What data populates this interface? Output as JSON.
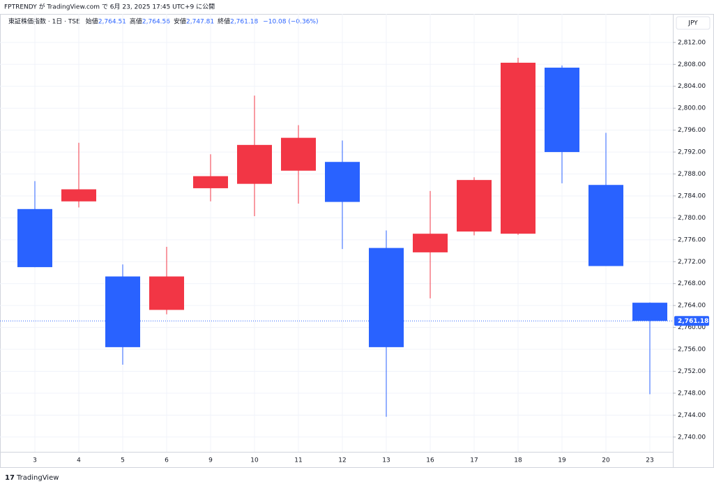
{
  "header": "FPTRENDY が TradingView.com で 6月 23, 2025 17:45 UTC+9 に公開",
  "footer": "TradingView",
  "chart_data": {
    "type": "candlestick",
    "symbol": "東証株価指数 · 1日 · TSE",
    "ohlc_labels": [
      {
        "label": "始値",
        "value": "2,764.51"
      },
      {
        "label": "高値",
        "value": "2,764.56"
      },
      {
        "label": "安値",
        "value": "2,747.81"
      },
      {
        "label": "終値",
        "value": "2,761.18"
      }
    ],
    "change": "−10.08 (−0.36%)",
    "currency": "JPY",
    "categories": [
      "3",
      "4",
      "5",
      "6",
      "9",
      "10",
      "11",
      "12",
      "13",
      "16",
      "17",
      "18",
      "19",
      "20",
      "23"
    ],
    "open": [
      2781.6,
      2783.0,
      2769.3,
      2763.2,
      2785.4,
      2786.2,
      2788.6,
      2790.2,
      2774.5,
      2773.7,
      2777.5,
      2777.1,
      2807.4,
      2786.0,
      2764.51
    ],
    "high": [
      2786.7,
      2793.7,
      2771.5,
      2774.7,
      2791.6,
      2802.3,
      2796.9,
      2794.1,
      2777.7,
      2784.9,
      2787.4,
      2809.2,
      2807.8,
      2795.5,
      2764.56
    ],
    "low": [
      2771.0,
      2781.9,
      2753.2,
      2762.4,
      2783.0,
      2780.3,
      2782.6,
      2774.3,
      2743.7,
      2765.3,
      2776.8,
      2776.9,
      2786.3,
      2771.2,
      2747.81
    ],
    "close": [
      2771.0,
      2785.2,
      2756.4,
      2769.3,
      2787.6,
      2793.3,
      2794.6,
      2782.9,
      2756.4,
      2777.1,
      2786.9,
      2808.3,
      2792.0,
      2771.2,
      2761.18
    ],
    "up_color": "#f23645",
    "down_color": "#2962ff",
    "last_price": {
      "value": 2761.18,
      "label": "2,761.18"
    },
    "ylim": [
      2737.3,
      2817.2
    ],
    "yticks": [
      {
        "value": 2740,
        "label": "2,740.00"
      },
      {
        "value": 2744,
        "label": "2,744.00"
      },
      {
        "value": 2748,
        "label": "2,748.00"
      },
      {
        "value": 2752,
        "label": "2,752.00"
      },
      {
        "value": 2756,
        "label": "2,756.00"
      },
      {
        "value": 2760,
        "label": "2,760.00"
      },
      {
        "value": 2764,
        "label": "2,764.00"
      },
      {
        "value": 2768,
        "label": "2,768.00"
      },
      {
        "value": 2772,
        "label": "2,772.00"
      },
      {
        "value": 2776,
        "label": "2,776.00"
      },
      {
        "value": 2780,
        "label": "2,780.00"
      },
      {
        "value": 2784,
        "label": "2,784.00"
      },
      {
        "value": 2788,
        "label": "2,788.00"
      },
      {
        "value": 2792,
        "label": "2,792.00"
      },
      {
        "value": 2796,
        "label": "2,796.00"
      },
      {
        "value": 2800,
        "label": "2,800.00"
      },
      {
        "value": 2804,
        "label": "2,804.00"
      },
      {
        "value": 2808,
        "label": "2,808.00"
      },
      {
        "value": 2812,
        "label": "2,812.00"
      }
    ],
    "grid": true
  }
}
